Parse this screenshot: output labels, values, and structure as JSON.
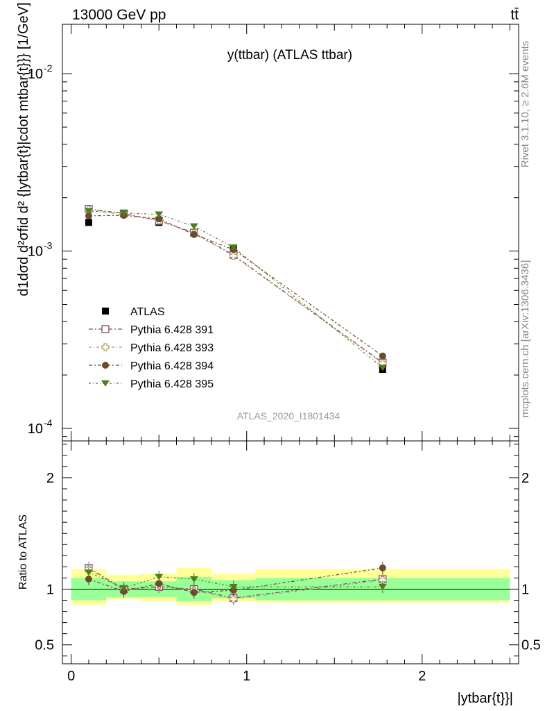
{
  "header": {
    "left": "13000 GeV pp",
    "right": "tt̄"
  },
  "side": {
    "rivet": "Rivet 3.1.10, ≥ 2.6M events",
    "mcplots": "mcplots.cern.ch [arXiv:1306.3436]"
  },
  "chart_data": [
    {
      "type": "scatter",
      "title": "y(ttbar) (ATLAS ttbar)",
      "watermark": "ATLAS_2020_I1801434",
      "ylabel": "d1dσd d²σfid d² {|ytbar{t}|cdot mtbar{t}}} [1/GeV]",
      "yscale": "log",
      "ylim": [
        8.5e-05,
        0.019
      ],
      "xlim": [
        -0.05,
        2.55
      ],
      "y_ticks": [
        {
          "value": 0.01,
          "label": "10",
          "exp": "-2"
        },
        {
          "value": 0.001,
          "label": "10",
          "exp": "-3"
        },
        {
          "value": 0.0001,
          "label": "10",
          "exp": "-4"
        }
      ],
      "x_edges": [
        0.0,
        0.2,
        0.4,
        0.6,
        0.8,
        1.05,
        2.5
      ],
      "x": [
        0.1,
        0.3,
        0.5,
        0.7,
        0.925,
        1.775
      ],
      "series": [
        {
          "name": "ATLAS",
          "marker": "square-filled",
          "color": "#000000",
          "values": [
            0.00145,
            0.00162,
            0.00145,
            0.00127,
            0.00103,
            0.000215
          ]
        },
        {
          "name": "Pythia 6.428 391",
          "marker": "square-open",
          "color": "#7a4e62",
          "values": [
            0.00173,
            0.00163,
            0.00148,
            0.00127,
            0.00095,
            0.000235
          ]
        },
        {
          "name": "Pythia 6.428 393",
          "marker": "cross-open",
          "color": "#b09a6a",
          "values": [
            0.00171,
            0.0016,
            0.00149,
            0.00126,
            0.00094,
            0.000233
          ]
        },
        {
          "name": "Pythia 6.428 394",
          "marker": "circle-filled",
          "color": "#6b4c2e",
          "values": [
            0.00158,
            0.00159,
            0.00152,
            0.00124,
            0.00102,
            0.000256
          ]
        },
        {
          "name": "Pythia 6.428 395",
          "marker": "triangle-down-filled",
          "color": "#4f7d1c",
          "values": [
            0.00168,
            0.00164,
            0.00161,
            0.00138,
            0.00105,
            0.00022
          ]
        }
      ],
      "legend_placement": "middle-left"
    },
    {
      "type": "scatter",
      "ylabel": "Ratio to ATLAS",
      "xlabel": "|ytbar{t}}|",
      "ylim": [
        0.33,
        2.33
      ],
      "xlim": [
        -0.05,
        2.55
      ],
      "y_ticks": [
        0.5,
        1,
        2
      ],
      "x_ticks": [
        0,
        1,
        2
      ],
      "band_1sigma": [
        [
          0.9,
          1.1
        ],
        [
          0.93,
          1.07
        ],
        [
          0.93,
          1.07
        ],
        [
          0.89,
          1.11
        ],
        [
          0.92,
          1.08
        ],
        [
          0.9,
          1.1
        ]
      ],
      "band_2sigma": [
        [
          0.86,
          1.18
        ],
        [
          0.91,
          1.13
        ],
        [
          0.89,
          1.14
        ],
        [
          0.86,
          1.19
        ],
        [
          0.89,
          1.14
        ],
        [
          0.88,
          1.18
        ]
      ],
      "series": [
        {
          "name": "Pythia 6.428 391",
          "values": [
            1.19,
            1.0,
            1.02,
            1.0,
            0.92,
            1.09
          ]
        },
        {
          "name": "Pythia 6.428 393",
          "values": [
            1.18,
            0.99,
            1.03,
            0.99,
            0.91,
            1.08
          ]
        },
        {
          "name": "Pythia 6.428 394",
          "values": [
            1.09,
            0.98,
            1.05,
            0.97,
            0.99,
            1.19
          ]
        },
        {
          "name": "Pythia 6.428 395",
          "values": [
            1.15,
            1.01,
            1.11,
            1.09,
            1.02,
            1.02
          ]
        }
      ]
    }
  ]
}
